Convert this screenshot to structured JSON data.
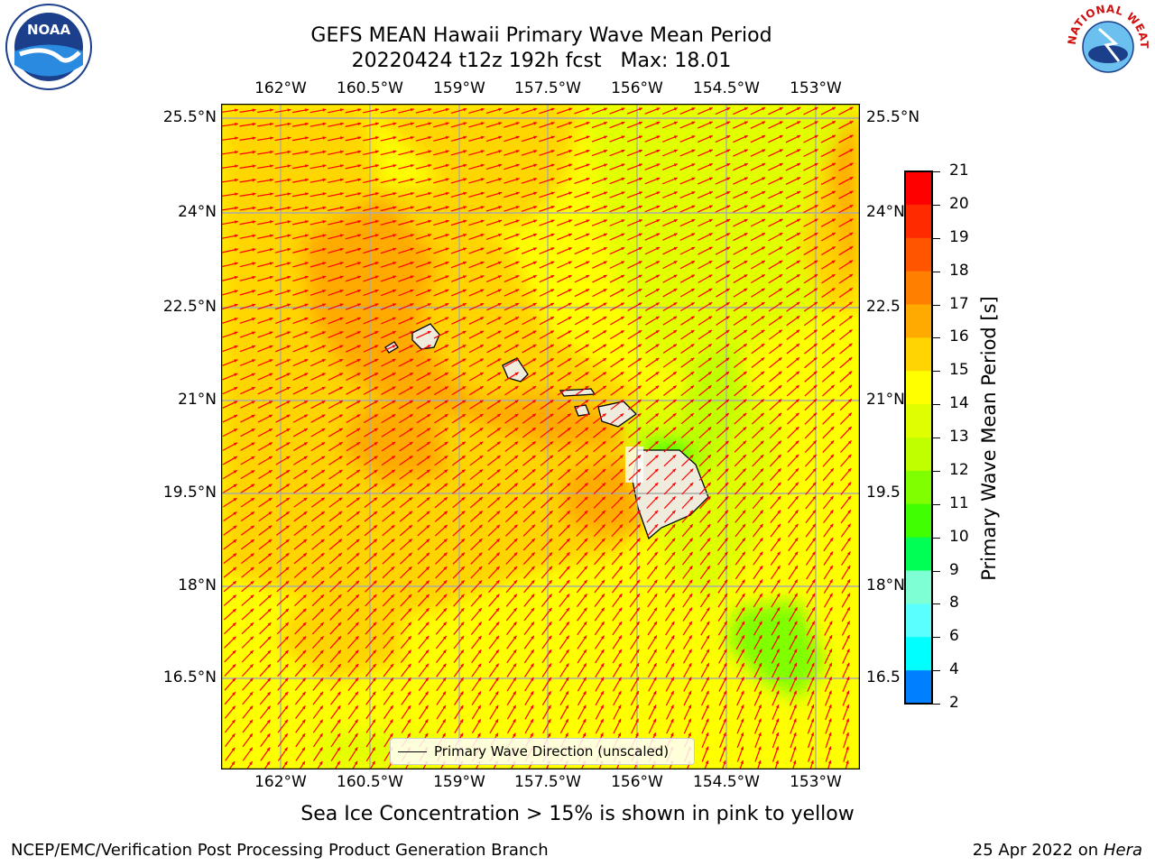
{
  "title_line1": "GEFS MEAN Hawaii Primary Wave Mean Period",
  "title_line2": "20220424 t12z 192h fcst   Max: 18.01",
  "map": {
    "lon_labels": [
      "162°W",
      "160.5°W",
      "159°W",
      "157.5°W",
      "156°W",
      "154.5°W",
      "153°W"
    ],
    "lat_labels": [
      "25.5°N",
      "24°N",
      "22.5°N",
      "21°N",
      "19.5°N",
      "18°N",
      "16.5°N"
    ],
    "lat_labels_right": [
      "25.5°N",
      "24°N",
      "22.5",
      "21°N",
      "19.5",
      "18°N",
      "16.5"
    ],
    "legend_label": "Primary Wave Direction (unscaled)",
    "arrow_color": "#ff0000"
  },
  "colorbar": {
    "label": "Primary Wave Mean Period [s]",
    "ticks": [
      "21",
      "20",
      "19",
      "18",
      "17",
      "16",
      "15",
      "14",
      "13",
      "12",
      "11",
      "10",
      "9",
      "8",
      "6",
      "4",
      "2"
    ],
    "colors": [
      "#ff0000",
      "#ff2a00",
      "#ff5500",
      "#ff7f00",
      "#ffaa00",
      "#ffd400",
      "#ffff00",
      "#dfff00",
      "#bfff00",
      "#7fff00",
      "#3fff00",
      "#00ff55",
      "#7fffd4",
      "#5affff",
      "#00ffff",
      "#0080ff",
      "#0000ff"
    ]
  },
  "subcaption": "Sea Ice Concentration > 15% is shown in pink to yellow",
  "footer_left": "NCEP/EMC/Verification Post Processing Product Generation Branch",
  "footer_right_date": "25 Apr 2022 on ",
  "footer_right_host": "Hera",
  "logos": {
    "left": "NOAA",
    "right_text": "NATIONAL WEATHER SERVICE"
  }
}
